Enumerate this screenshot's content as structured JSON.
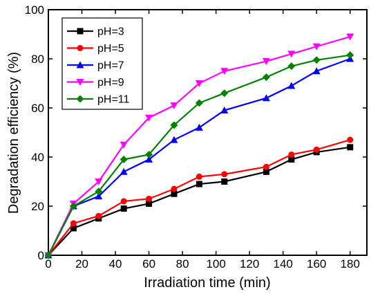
{
  "chart_data": {
    "type": "line",
    "title": "",
    "xlabel": "Irradiation time (min)",
    "ylabel": "Degradation efficiency (%)",
    "xlim": [
      0,
      190
    ],
    "ylim": [
      0,
      100
    ],
    "xticks": [
      0,
      20,
      40,
      60,
      80,
      100,
      120,
      140,
      160,
      180
    ],
    "yticks": [
      0,
      20,
      40,
      60,
      80,
      100
    ],
    "grid": false,
    "legend_position": "top-left",
    "x": [
      0,
      15,
      30,
      45,
      60,
      75,
      90,
      105,
      130,
      145,
      160,
      180
    ],
    "series": [
      {
        "name": "pH=3",
        "color": "#000000",
        "marker": "square",
        "values": [
          0,
          11,
          15,
          19,
          21,
          25,
          29,
          30,
          34,
          39,
          42,
          44
        ]
      },
      {
        "name": "pH=5",
        "color": "#ff0000",
        "marker": "circle",
        "values": [
          0,
          13,
          16,
          22,
          23,
          27,
          32,
          33,
          36,
          41,
          43,
          47
        ]
      },
      {
        "name": "pH=7",
        "color": "#0000ff",
        "marker": "triangle-up",
        "values": [
          0,
          20,
          24,
          34,
          39,
          47,
          52,
          59,
          64,
          69,
          75,
          80
        ]
      },
      {
        "name": "pH=9",
        "color": "#ff00ff",
        "marker": "triangle-down",
        "values": [
          0,
          21,
          30,
          45,
          56,
          61,
          70,
          75,
          79,
          82,
          85,
          89
        ]
      },
      {
        "name": "pH=11",
        "color": "#008000",
        "marker": "diamond",
        "values": [
          0,
          20,
          26,
          39,
          41,
          53,
          62,
          66,
          72.5,
          77,
          79.5,
          81.5
        ]
      }
    ]
  }
}
